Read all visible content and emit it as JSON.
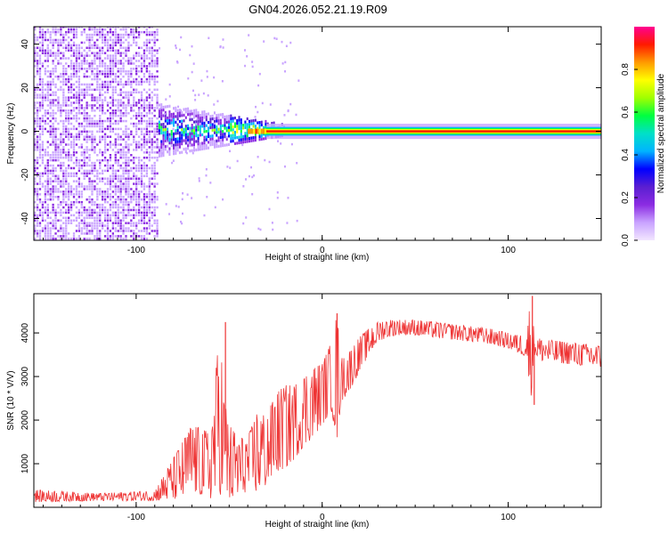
{
  "title": "GN04.2026.052.21.19.R09",
  "chart_data": [
    {
      "type": "heatmap",
      "name": "spectrogram",
      "xlabel": "Height of straight line (km)",
      "ylabel": "Frequency (Hz)",
      "xlim": [
        -155,
        150
      ],
      "ylim": [
        -50,
        48
      ],
      "xticks": [
        -100,
        0,
        100
      ],
      "yticks": [
        -40,
        -20,
        0,
        20,
        40
      ],
      "colorbar": {
        "label": "Normalized spectral amplitude",
        "range": [
          0,
          1
        ],
        "ticks": [
          "0.0",
          "0.2",
          "0.4",
          "0.6",
          "0.8"
        ],
        "colors": [
          "#f2e6ff",
          "#c9a3ff",
          "#8b2be2",
          "#5a1fd1",
          "#0000ff",
          "#00b4ff",
          "#00e0c8",
          "#00ff40",
          "#a0ff00",
          "#ffff00",
          "#ff9a00",
          "#ff1a00",
          "#ff0090"
        ]
      },
      "regions": [
        {
          "desc": "broadband noise",
          "x_range": [
            -155,
            -88
          ],
          "f_range": [
            -50,
            48
          ],
          "level": 0.15
        },
        {
          "desc": "scattered spectral energy",
          "x_range": [
            -88,
            -20
          ],
          "f_range": [
            -12,
            12
          ],
          "level": 0.35
        },
        {
          "desc": "carrier line",
          "x_range": [
            -40,
            150
          ],
          "f_range": [
            -1.5,
            1.5
          ],
          "level": 0.9
        }
      ]
    },
    {
      "type": "line",
      "name": "snr",
      "xlabel": "Height of straight line (km)",
      "ylabel": "SNR (10 * V/V)",
      "xlim": [
        -155,
        150
      ],
      "ylim": [
        0,
        4900
      ],
      "xticks": [
        -100,
        0,
        100
      ],
      "yticks": [
        1000,
        2000,
        3000,
        4000
      ],
      "color": "#ee3333",
      "series": [
        {
          "name": "SNR envelope",
          "x": [
            -155,
            -120,
            -90,
            -75,
            -70,
            -60,
            -55,
            -53,
            -50,
            -45,
            -40,
            -35,
            -30,
            -25,
            -20,
            -15,
            -10,
            -5,
            0,
            5,
            8,
            10,
            15,
            20,
            25,
            30,
            35,
            40,
            50,
            60,
            70,
            80,
            90,
            100,
            105,
            110,
            112,
            114,
            116,
            118,
            120,
            130,
            140,
            150
          ],
          "lo": [
            120,
            150,
            150,
            200,
            350,
            200,
            300,
            250,
            150,
            200,
            400,
            350,
            500,
            800,
            900,
            1100,
            1400,
            1600,
            1900,
            2200,
            1500,
            2400,
            2700,
            3100,
            3500,
            3800,
            3900,
            3950,
            3950,
            3900,
            3850,
            3800,
            3750,
            3650,
            3550,
            3450,
            2400,
            3500,
            3400,
            3350,
            3350,
            3300,
            3250,
            3200
          ],
          "hi": [
            400,
            320,
            380,
            1500,
            1900,
            1700,
            4200,
            2600,
            1900,
            1600,
            1600,
            2200,
            2100,
            2600,
            2800,
            2800,
            3000,
            3200,
            3300,
            3800,
            4450,
            3400,
            3600,
            3900,
            4100,
            4250,
            4300,
            4300,
            4300,
            4250,
            4200,
            4150,
            4100,
            4000,
            3950,
            3950,
            4850,
            4000,
            3900,
            3850,
            3850,
            3800,
            3750,
            3700
          ],
          "spikes": [
            {
              "x": -52,
              "y": 4250
            },
            {
              "x": 8,
              "y": 4450
            },
            {
              "x": 113,
              "y": 4850
            },
            {
              "x": 114,
              "y": 2350
            }
          ]
        }
      ]
    }
  ]
}
